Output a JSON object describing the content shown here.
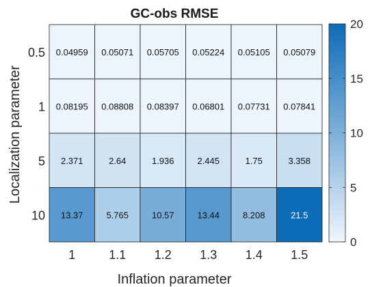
{
  "chart_data": {
    "type": "heatmap",
    "title": "GC-obs RMSE",
    "xlabel": "Inflation parameter",
    "ylabel": "Localization parameter",
    "x_categories": [
      "1",
      "1.1",
      "1.2",
      "1.3",
      "1.4",
      "1.5"
    ],
    "y_categories": [
      "0.5",
      "1",
      "5",
      "10"
    ],
    "values": [
      [
        0.04959,
        0.05071,
        0.05705,
        0.05224,
        0.05105,
        0.05079
      ],
      [
        0.08195,
        0.08808,
        0.08397,
        0.06801,
        0.07731,
        0.07841
      ],
      [
        2.371,
        2.64,
        1.936,
        2.445,
        1.75,
        3.358
      ],
      [
        13.37,
        5.765,
        10.57,
        13.44,
        8.208,
        21.5
      ]
    ],
    "value_labels": [
      [
        "0.04959",
        "0.05071",
        "0.05705",
        "0.05224",
        "0.05105",
        "0.05079"
      ],
      [
        "0.08195",
        "0.08808",
        "0.08397",
        "0.06801",
        "0.07731",
        "0.07841"
      ],
      [
        "2.371",
        "2.64",
        "1.936",
        "2.445",
        "1.75",
        "3.358"
      ],
      [
        "13.37",
        "5.765",
        "10.57",
        "13.44",
        "8.208",
        "21.5"
      ]
    ],
    "colorbar": {
      "range": [
        0,
        20
      ],
      "ticks": [
        "0",
        "5",
        "10",
        "15",
        "20"
      ],
      "low_color": "#eef5fc",
      "high_color": "#0d6cb8"
    },
    "grid": true
  }
}
